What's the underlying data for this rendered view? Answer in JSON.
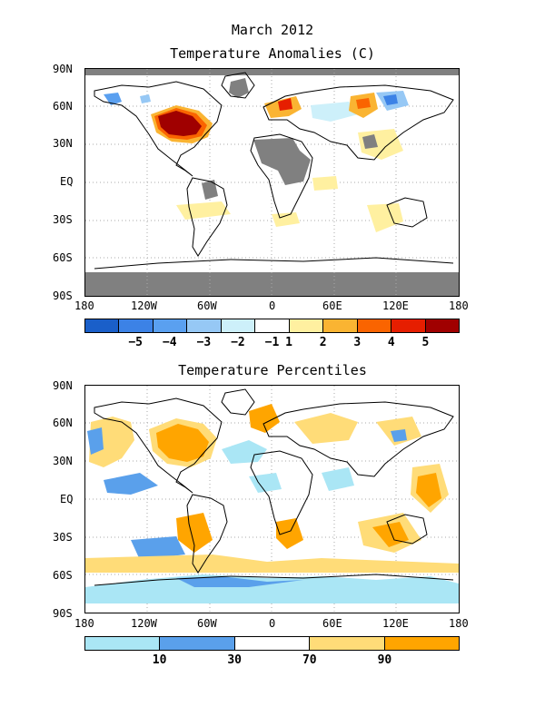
{
  "title": "March 2012",
  "maps": [
    {
      "subtitle": "Temperature Anomalies (C)",
      "lat_labels": [
        "90N",
        "60N",
        "30N",
        "EQ",
        "30S",
        "60S",
        "90S"
      ],
      "lon_labels": [
        "180",
        "120W",
        "60W",
        "0",
        "60E",
        "120E",
        "180"
      ],
      "colorbar": {
        "labels": [
          "−5",
          "−4",
          "−3",
          "−2",
          "−1",
          "1",
          "2",
          "3",
          "4",
          "5"
        ],
        "colors": [
          "#1a5fc9",
          "#3c82e6",
          "#5aa0f0",
          "#96c8f5",
          "#cdf0fa",
          "#ffffff",
          "#fff0a0",
          "#fab432",
          "#fa6400",
          "#e61e00",
          "#a00000"
        ]
      }
    },
    {
      "subtitle": "Temperature Percentiles",
      "lat_labels": [
        "90N",
        "60N",
        "30N",
        "EQ",
        "30S",
        "60S",
        "90S"
      ],
      "lon_labels": [
        "180",
        "120W",
        "60W",
        "0",
        "60E",
        "120E",
        "180"
      ],
      "colorbar": {
        "labels": [
          "10",
          "30",
          "70",
          "90"
        ],
        "colors": [
          "#aae6f5",
          "#5aa0eb",
          "#ffffff",
          "#ffdc78",
          "#ffa500"
        ]
      }
    }
  ]
}
